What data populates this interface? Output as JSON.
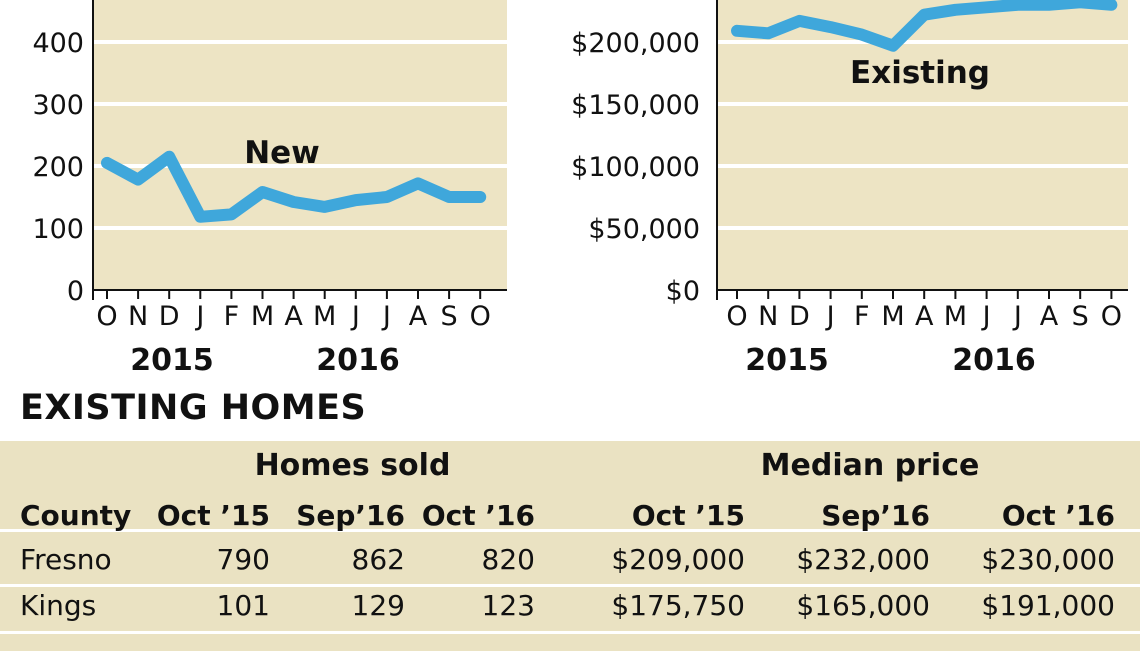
{
  "chart_data": [
    {
      "type": "line",
      "x": [
        "O",
        "N",
        "D",
        "J",
        "F",
        "M",
        "A",
        "M",
        "J",
        "J",
        "A",
        "S",
        "O"
      ],
      "years": [
        "2015",
        "2016"
      ],
      "ylim": [
        0,
        450
      ],
      "yticks": [
        "0",
        "100",
        "200",
        "300",
        "400"
      ],
      "series": [
        {
          "name": "New",
          "values": [
            205,
            178,
            215,
            118,
            122,
            158,
            142,
            134,
            145,
            150,
            172,
            150,
            150
          ]
        }
      ],
      "color": "#3fa7db",
      "background": "#ede4c4",
      "grid": true
    },
    {
      "type": "line",
      "x": [
        "O",
        "N",
        "D",
        "J",
        "F",
        "M",
        "A",
        "M",
        "J",
        "J",
        "A",
        "S",
        "O"
      ],
      "years": [
        "2015",
        "2016"
      ],
      "ylim": [
        0,
        240000
      ],
      "yticks": [
        "$0",
        "$50,000",
        "$100,000",
        "$150,000",
        "$200,000"
      ],
      "series": [
        {
          "name": "Existing",
          "values": [
            209000,
            207000,
            217000,
            212000,
            206000,
            197000,
            222000,
            226000,
            228000,
            230000,
            230000,
            232000,
            230000
          ]
        }
      ],
      "color": "#3fa7db",
      "background": "#ede4c4",
      "grid": true
    }
  ],
  "table": {
    "title": "EXISTING HOMES",
    "group_headers": [
      "Homes sold",
      "Median price"
    ],
    "columns": [
      "County",
      "Oct ’15",
      "Sep’16",
      "Oct ’16",
      "Oct ’15",
      "Sep’16",
      "Oct ’16"
    ],
    "rows": [
      [
        "Fresno",
        "790",
        "862",
        "820",
        "$209,000",
        "$232,000",
        "$230,000"
      ],
      [
        "Kings",
        "101",
        "129",
        "123",
        "$175,750",
        "$165,000",
        "$191,000"
      ]
    ]
  }
}
